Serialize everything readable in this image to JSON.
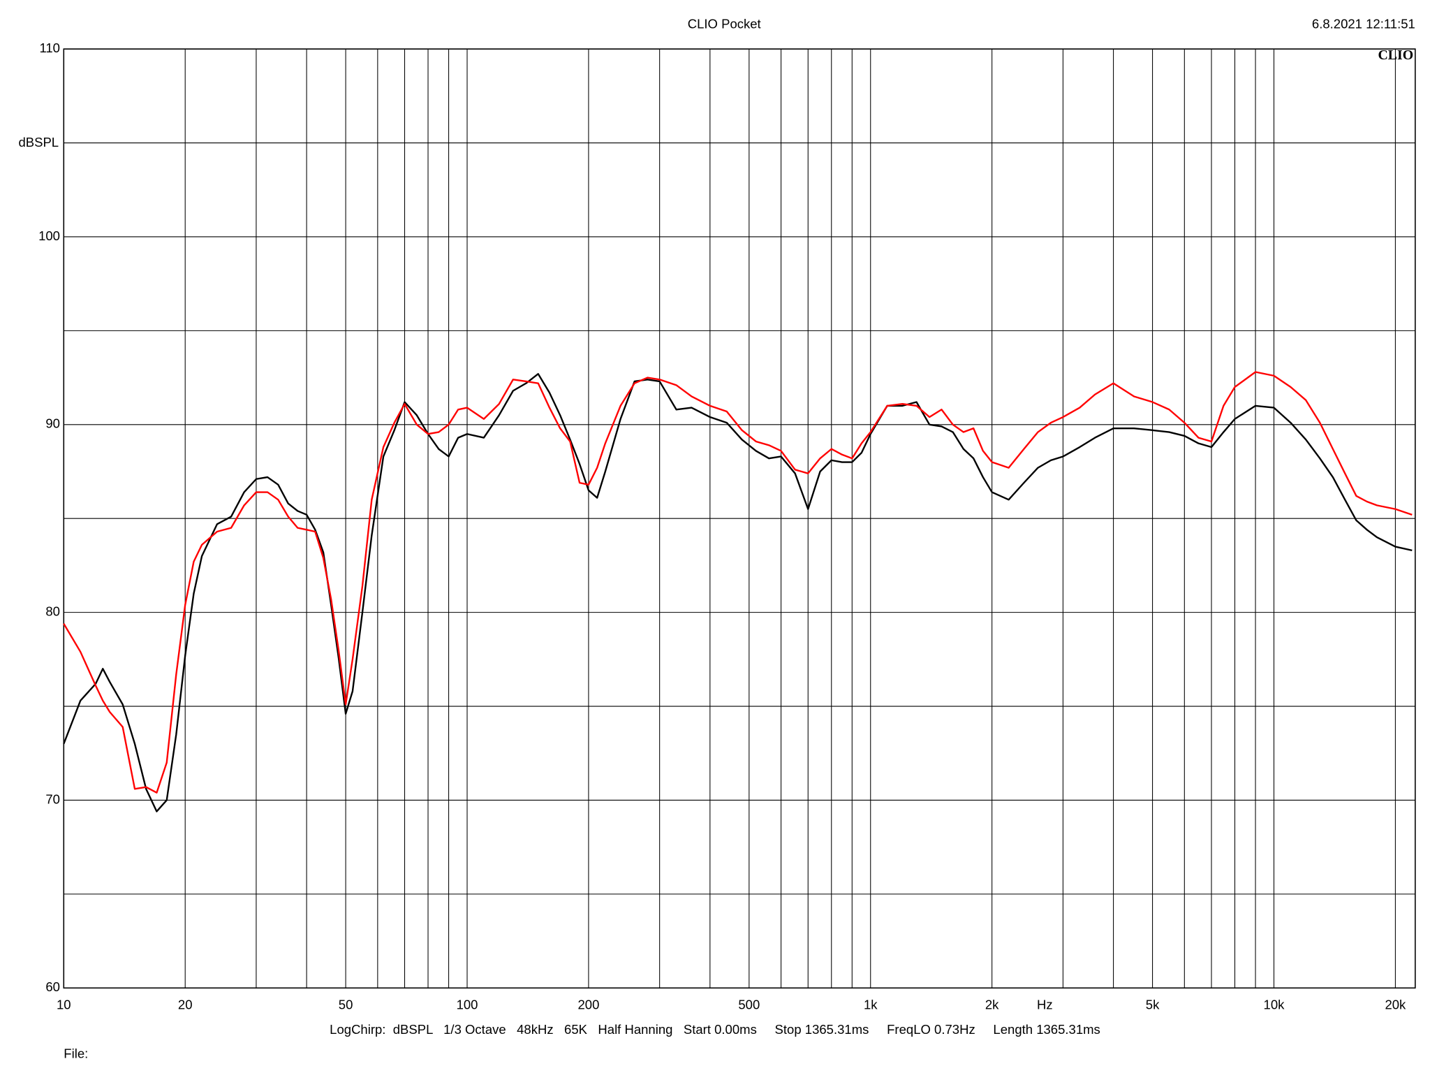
{
  "chart_data": {
    "type": "line",
    "title": "CLIO Pocket",
    "timestamp": "6.8.2021 12:11:51",
    "logo": "CLIO",
    "y_label": "dBSPL",
    "x_unit_label": "Hz",
    "footer": "LogChirp:  dBSPL   1/3 Octave   48kHz   65K   Half Hanning   Start 0.00ms     Stop 1365.31ms     FreqLO 0.73Hz     Length 1365.31ms",
    "file_label": "File:",
    "log_x": true,
    "grid": true,
    "xlim": [
      10,
      22400
    ],
    "xticks": [
      10,
      20,
      50,
      100,
      200,
      500,
      {
        "value": 1000,
        "label": "1k"
      },
      {
        "value": 2000,
        "label": "2k"
      },
      {
        "value": 5000,
        "label": "5k"
      },
      {
        "value": 10000,
        "label": "10k"
      },
      {
        "value": 20000,
        "label": "20k"
      }
    ],
    "minor_xticks": [
      30,
      40,
      60,
      70,
      80,
      90,
      300,
      400,
      600,
      700,
      800,
      900,
      3000,
      4000,
      6000,
      7000,
      8000,
      9000
    ],
    "ylim": [
      60,
      110
    ],
    "yticks": [
      60,
      70,
      80,
      90,
      100,
      110
    ],
    "minor_yticks": [
      65,
      75,
      85,
      95,
      105
    ],
    "x": [
      10,
      11,
      12,
      12.5,
      13,
      14,
      15,
      16,
      17,
      18,
      19,
      20,
      21,
      22,
      24,
      26,
      28,
      30,
      32,
      34,
      36,
      38,
      40,
      42,
      44,
      46,
      48,
      50,
      52,
      55,
      58,
      62,
      66,
      70,
      75,
      80,
      85,
      90,
      95,
      100,
      110,
      120,
      130,
      140,
      150,
      160,
      170,
      180,
      190,
      200,
      210,
      220,
      240,
      260,
      280,
      300,
      330,
      360,
      400,
      440,
      480,
      520,
      560,
      600,
      650,
      700,
      750,
      800,
      850,
      900,
      950,
      1000,
      1100,
      1200,
      1300,
      1400,
      1500,
      1600,
      1700,
      1800,
      1900,
      2000,
      2200,
      2400,
      2600,
      2800,
      3000,
      3300,
      3600,
      4000,
      4500,
      5000,
      5500,
      6000,
      6500,
      7000,
      7500,
      8000,
      9000,
      10000,
      11000,
      12000,
      13000,
      14000,
      15000,
      16000,
      17000,
      18000,
      20000,
      22000
    ],
    "series": [
      {
        "color": "#000000",
        "values": [
          73.0,
          75.3,
          76.2,
          77.0,
          76.3,
          75.1,
          73.0,
          70.6,
          69.4,
          70.0,
          73.5,
          77.7,
          81.0,
          83.0,
          84.7,
          85.1,
          86.4,
          87.1,
          87.2,
          86.8,
          85.8,
          85.4,
          85.2,
          84.4,
          83.2,
          80.4,
          77.6,
          74.6,
          75.8,
          80.0,
          84.1,
          88.3,
          89.7,
          91.2,
          90.5,
          89.5,
          88.7,
          88.3,
          89.3,
          89.5,
          89.3,
          90.5,
          91.8,
          92.2,
          92.7,
          91.7,
          90.5,
          89.2,
          87.9,
          86.5,
          86.1,
          87.5,
          90.3,
          92.3,
          92.4,
          92.3,
          90.8,
          90.9,
          90.4,
          90.1,
          89.2,
          88.6,
          88.2,
          88.3,
          87.4,
          85.5,
          87.5,
          88.1,
          88.0,
          88.0,
          88.5,
          89.5,
          91.0,
          91.0,
          91.2,
          90.0,
          89.9,
          89.6,
          88.7,
          88.2,
          87.2,
          86.4,
          86.0,
          86.9,
          87.7,
          88.1,
          88.3,
          88.8,
          89.3,
          89.8,
          89.8,
          89.7,
          89.6,
          89.4,
          89.0,
          88.8,
          89.6,
          90.3,
          91.0,
          90.9,
          90.1,
          89.2,
          88.2,
          87.2,
          86.0,
          84.9,
          84.4,
          84.0,
          83.5,
          83.3
        ]
      },
      {
        "color": "#ff0000",
        "values": [
          79.4,
          77.9,
          76.1,
          75.3,
          74.7,
          73.9,
          70.6,
          70.7,
          70.4,
          72.0,
          76.7,
          80.4,
          82.7,
          83.6,
          84.3,
          84.5,
          85.7,
          86.4,
          86.4,
          86.0,
          85.1,
          84.5,
          84.4,
          84.3,
          82.9,
          80.7,
          78.0,
          75.1,
          77.5,
          81.4,
          86.0,
          88.8,
          90.1,
          91.1,
          90.0,
          89.5,
          89.6,
          90.0,
          90.8,
          90.9,
          90.3,
          91.1,
          92.4,
          92.3,
          92.2,
          90.9,
          89.8,
          89.1,
          86.9,
          86.8,
          87.7,
          89.0,
          91.0,
          92.2,
          92.5,
          92.4,
          92.1,
          91.5,
          91.0,
          90.7,
          89.7,
          89.1,
          88.9,
          88.6,
          87.6,
          87.4,
          88.2,
          88.7,
          88.4,
          88.2,
          89.0,
          89.6,
          91.0,
          91.1,
          91.0,
          90.4,
          90.8,
          90.0,
          89.6,
          89.8,
          88.6,
          88.0,
          87.7,
          88.7,
          89.6,
          90.1,
          90.4,
          90.9,
          91.6,
          92.2,
          91.5,
          91.2,
          90.8,
          90.1,
          89.3,
          89.1,
          91.0,
          92.0,
          92.8,
          92.6,
          92.0,
          91.3,
          90.1,
          88.7,
          87.4,
          86.2,
          85.9,
          85.7,
          85.5,
          85.2
        ]
      }
    ]
  }
}
